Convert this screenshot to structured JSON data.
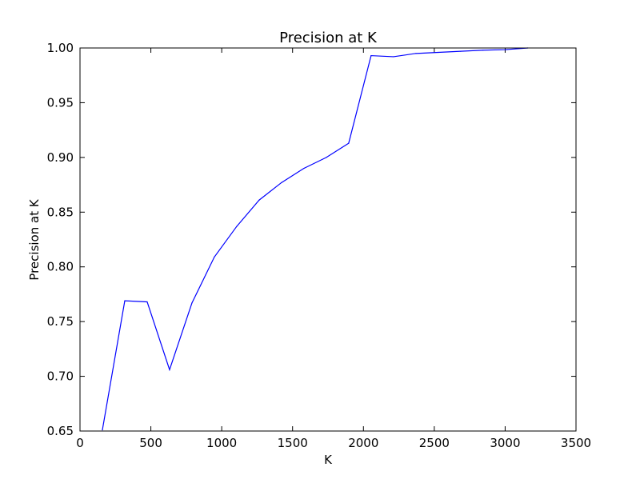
{
  "chart_data": {
    "type": "line",
    "title": "Precision at K",
    "xlabel": "K",
    "ylabel": "Precision at K",
    "xlim": [
      0,
      3500
    ],
    "ylim": [
      0.65,
      1.0
    ],
    "xticks": [
      0,
      500,
      1000,
      1500,
      2000,
      2500,
      3000,
      3500
    ],
    "yticks": [
      0.65,
      0.7,
      0.75,
      0.8,
      0.85,
      0.9,
      0.95,
      1.0
    ],
    "grid": false,
    "series": [
      {
        "color": "#0000ff",
        "x": [
          158,
          316,
          474,
          632,
          790,
          948,
          1106,
          1264,
          1422,
          1580,
          1738,
          1896,
          2054,
          2212,
          2370,
          2528,
          2686,
          2844,
          3002,
          3160
        ],
        "y": [
          0.651,
          0.769,
          0.768,
          0.706,
          0.767,
          0.809,
          0.837,
          0.861,
          0.877,
          0.89,
          0.9,
          0.913,
          0.993,
          0.992,
          0.995,
          0.996,
          0.997,
          0.998,
          0.9985,
          1.0
        ]
      }
    ]
  }
}
